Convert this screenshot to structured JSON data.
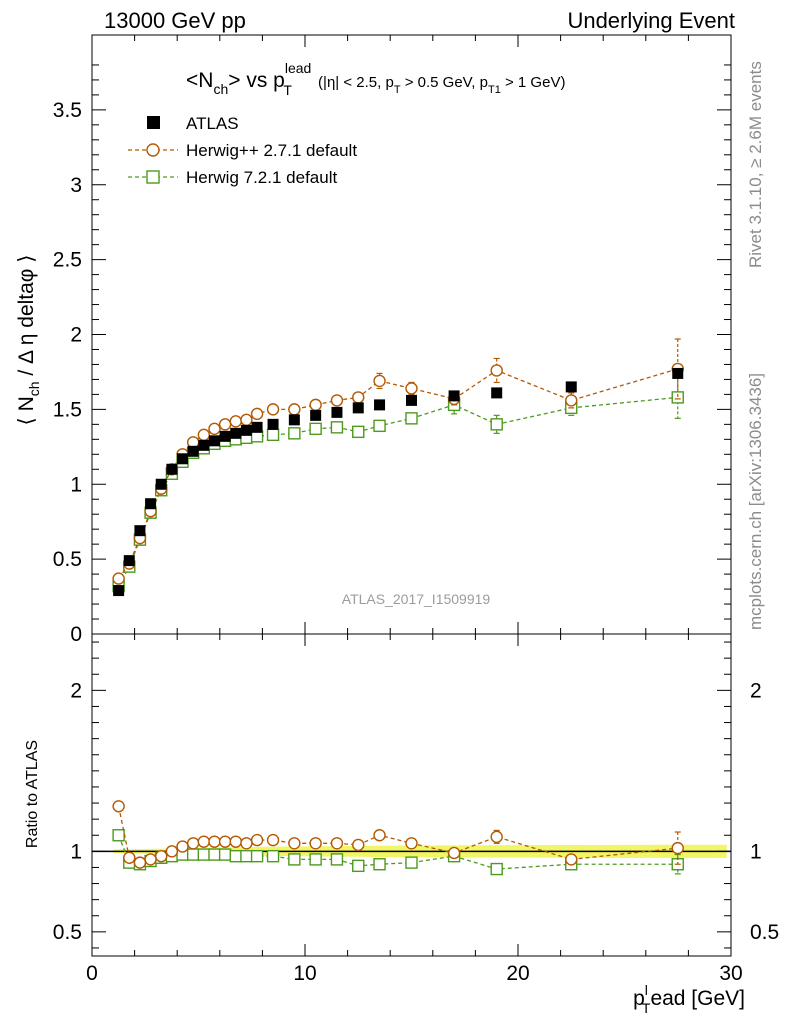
{
  "header": {
    "left": "13000 GeV pp",
    "right": "Underlying Event"
  },
  "side": {
    "rivet": "Rivet 3.1.10, ≥ 2.6M events",
    "mcplots": "mcplots.cern.ch [arXiv:1306.3436]"
  },
  "analysis_id": "ATLAS_2017_I1509919",
  "ratio_ylabel": "Ratio to ATLAS",
  "chart_data": [
    {
      "type": "scatter",
      "title": {
        "base": "<N",
        "sub1": "ch",
        "mid": "> vs p",
        "sup": "lead",
        "sub2": "T",
        "cut_a": " (|η| < 2.5, p",
        "cut_sub_a": "T",
        "cut_b": " > 0.5 GeV, p",
        "cut_sub_b": "T1",
        "cut_c": " > 1 GeV)"
      },
      "ylabel": {
        "a": "⟨ N",
        "sub": "ch",
        "b": " / Δ η deltaφ ⟩"
      },
      "xlabel": {
        "a": "p",
        "sup": "l",
        "sub": "T",
        "b": "ead [GeV]"
      },
      "xlim": [
        0,
        30
      ],
      "ylim": [
        0,
        4
      ],
      "xticks": [
        0,
        10,
        20,
        30
      ],
      "yticks": [
        0,
        0.5,
        1,
        1.5,
        2,
        2.5,
        3,
        3.5
      ],
      "ytick_labels": [
        "0",
        "0.5",
        "1",
        "1.5",
        "2",
        "2.5",
        "3",
        "3.5"
      ],
      "legend_position": "top-left",
      "series": [
        {
          "name": "ATLAS",
          "marker": "filled-square",
          "color": "#000000",
          "x": [
            1.25,
            1.75,
            2.25,
            2.75,
            3.25,
            3.75,
            4.25,
            4.75,
            5.25,
            5.75,
            6.25,
            6.75,
            7.25,
            7.75,
            8.5,
            9.5,
            10.5,
            11.5,
            12.5,
            13.5,
            15,
            17,
            19,
            22.5,
            27.5
          ],
          "y": [
            0.29,
            0.49,
            0.69,
            0.87,
            1.0,
            1.1,
            1.17,
            1.22,
            1.26,
            1.29,
            1.32,
            1.34,
            1.36,
            1.38,
            1.4,
            1.43,
            1.46,
            1.48,
            1.51,
            1.53,
            1.56,
            1.59,
            1.61,
            1.65,
            1.74
          ]
        },
        {
          "name": "Herwig++ 2.7.1 default",
          "marker": "open-circle",
          "color": "#b35900",
          "x": [
            1.25,
            1.75,
            2.25,
            2.75,
            3.25,
            3.75,
            4.25,
            4.75,
            5.25,
            5.75,
            6.25,
            6.75,
            7.25,
            7.75,
            8.5,
            9.5,
            10.5,
            11.5,
            12.5,
            13.5,
            15,
            17,
            19,
            22.5,
            27.5
          ],
          "y": [
            0.37,
            0.47,
            0.64,
            0.82,
            0.97,
            1.1,
            1.2,
            1.28,
            1.33,
            1.37,
            1.4,
            1.42,
            1.43,
            1.47,
            1.5,
            1.5,
            1.53,
            1.56,
            1.58,
            1.69,
            1.64,
            1.57,
            1.76,
            1.56,
            1.77
          ],
          "err": [
            0,
            0,
            0,
            0,
            0,
            0,
            0,
            0,
            0,
            0,
            0,
            0,
            0,
            0,
            0,
            0,
            0,
            0,
            0,
            0.05,
            0.04,
            0.04,
            0.08,
            0.05,
            0.2
          ]
        },
        {
          "name": "Herwig 7.2.1 default",
          "marker": "open-square",
          "color": "#4d9a1e",
          "x": [
            1.25,
            1.75,
            2.25,
            2.75,
            3.25,
            3.75,
            4.25,
            4.75,
            5.25,
            5.75,
            6.25,
            6.75,
            7.25,
            7.75,
            8.5,
            9.5,
            10.5,
            11.5,
            12.5,
            13.5,
            15,
            17,
            19,
            22.5,
            27.5
          ],
          "y": [
            0.32,
            0.45,
            0.63,
            0.81,
            0.96,
            1.07,
            1.15,
            1.21,
            1.24,
            1.27,
            1.29,
            1.3,
            1.31,
            1.32,
            1.33,
            1.34,
            1.37,
            1.38,
            1.35,
            1.39,
            1.44,
            1.53,
            1.4,
            1.51,
            1.58
          ],
          "err": [
            0,
            0,
            0,
            0,
            0,
            0,
            0,
            0,
            0,
            0,
            0,
            0,
            0,
            0,
            0,
            0,
            0,
            0,
            0,
            0,
            0.03,
            0.06,
            0.06,
            0.05,
            0.14
          ]
        }
      ]
    },
    {
      "type": "scatter",
      "ylabel": "Ratio to ATLAS",
      "xlim": [
        0,
        30
      ],
      "ylim": [
        0.35,
        2.35
      ],
      "yticks": [
        0.5,
        1,
        2
      ],
      "ytick_labels": [
        "0.5",
        "1",
        "2"
      ],
      "reference_line": 1,
      "series": [
        {
          "name": "Herwig++ 2.7.1 default",
          "color": "#b35900",
          "marker": "open-circle",
          "x": [
            1.25,
            1.75,
            2.25,
            2.75,
            3.25,
            3.75,
            4.25,
            4.75,
            5.25,
            5.75,
            6.25,
            6.75,
            7.25,
            7.75,
            8.5,
            9.5,
            10.5,
            11.5,
            12.5,
            13.5,
            15,
            17,
            19,
            22.5,
            27.5
          ],
          "y": [
            1.28,
            0.96,
            0.93,
            0.95,
            0.97,
            1.0,
            1.03,
            1.05,
            1.06,
            1.06,
            1.06,
            1.06,
            1.05,
            1.07,
            1.07,
            1.05,
            1.05,
            1.05,
            1.04,
            1.1,
            1.05,
            0.99,
            1.09,
            0.95,
            1.02
          ],
          "err": [
            0,
            0,
            0,
            0,
            0,
            0,
            0,
            0,
            0,
            0,
            0,
            0,
            0,
            0,
            0,
            0,
            0,
            0,
            0,
            0.02,
            0.02,
            0.03,
            0.04,
            0.03,
            0.1
          ]
        },
        {
          "name": "Herwig 7.2.1 default",
          "color": "#4d9a1e",
          "marker": "open-square",
          "x": [
            1.25,
            1.75,
            2.25,
            2.75,
            3.25,
            3.75,
            4.25,
            4.75,
            5.25,
            5.75,
            6.25,
            6.75,
            7.25,
            7.75,
            8.5,
            9.5,
            10.5,
            11.5,
            12.5,
            13.5,
            15,
            17,
            19,
            22.5,
            27.5
          ],
          "y": [
            1.1,
            0.93,
            0.92,
            0.94,
            0.96,
            0.97,
            0.98,
            0.98,
            0.98,
            0.98,
            0.98,
            0.97,
            0.97,
            0.97,
            0.97,
            0.95,
            0.95,
            0.95,
            0.91,
            0.92,
            0.93,
            0.97,
            0.89,
            0.92,
            0.92
          ],
          "err": [
            0,
            0,
            0,
            0,
            0,
            0,
            0,
            0,
            0,
            0,
            0,
            0,
            0,
            0,
            0,
            0,
            0,
            0,
            0,
            0,
            0.02,
            0.03,
            0.03,
            0.03,
            0.06
          ]
        }
      ]
    }
  ]
}
